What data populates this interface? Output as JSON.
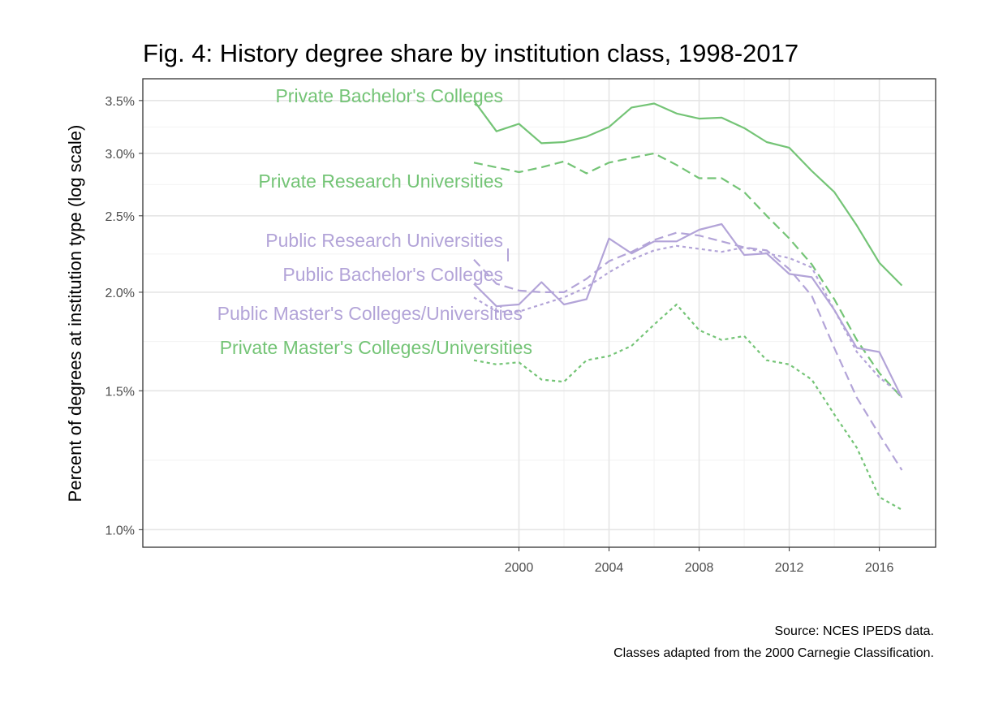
{
  "chart_data": {
    "type": "line",
    "title": "Fig. 4: History degree share by institution class, 1998-2017",
    "ylabel": "Percent of degrees at institution type (log scale)",
    "xlabel": "",
    "y_scale": "log",
    "x": [
      1998,
      1999,
      2000,
      2001,
      2002,
      2003,
      2004,
      2005,
      2006,
      2007,
      2008,
      2009,
      2010,
      2011,
      2012,
      2013,
      2014,
      2015,
      2016,
      2017
    ],
    "xlim": [
      1983.3,
      2018.5
    ],
    "ylim": [
      0.95,
      3.73
    ],
    "x_ticks": [
      2000,
      2004,
      2008,
      2012,
      2016
    ],
    "y_ticks": [
      1.0,
      1.5,
      2.0,
      2.5,
      3.0,
      3.5
    ],
    "y_tick_labels": [
      "1.0%",
      "1.5%",
      "2.0%",
      "2.5%",
      "3.0%",
      "3.5%"
    ],
    "grid": true,
    "legend": "direct labels at left end of each line",
    "colors": {
      "private": "#74c476",
      "public": "#b3a4d8"
    },
    "series": [
      {
        "name": "Private Bachelor's Colleges",
        "group": "private",
        "dash": "solid",
        "values": [
          3.5,
          3.2,
          3.27,
          3.09,
          3.1,
          3.15,
          3.24,
          3.43,
          3.47,
          3.37,
          3.32,
          3.33,
          3.23,
          3.1,
          3.05,
          2.85,
          2.68,
          2.43,
          2.18,
          2.04
        ]
      },
      {
        "name": "Private Research Universities",
        "group": "private",
        "dash": "dashed",
        "values": [
          2.92,
          2.88,
          2.84,
          2.88,
          2.93,
          2.83,
          2.92,
          2.96,
          3.0,
          2.9,
          2.79,
          2.79,
          2.68,
          2.5,
          2.34,
          2.17,
          1.96,
          1.74,
          1.58,
          1.47
        ]
      },
      {
        "name": "Public Research Universities",
        "group": "public",
        "dash": "solid",
        "values": [
          2.05,
          1.92,
          1.93,
          2.06,
          1.93,
          1.96,
          2.34,
          2.24,
          2.32,
          2.32,
          2.4,
          2.44,
          2.23,
          2.24,
          2.11,
          2.09,
          1.9,
          1.7,
          1.68,
          1.47
        ]
      },
      {
        "name": "Public Bachelor's Colleges",
        "group": "public",
        "dash": "dashed",
        "values": [
          2.2,
          2.05,
          2.01,
          2.0,
          2.0,
          2.08,
          2.19,
          2.25,
          2.33,
          2.38,
          2.36,
          2.32,
          2.28,
          2.26,
          2.14,
          1.98,
          1.7,
          1.47,
          1.32,
          1.19
        ]
      },
      {
        "name": "Public Master's Colleges/Universities",
        "group": "public",
        "dash": "dotted",
        "values": [
          1.97,
          1.89,
          1.89,
          1.93,
          1.97,
          2.03,
          2.12,
          2.2,
          2.26,
          2.29,
          2.27,
          2.25,
          2.28,
          2.24,
          2.21,
          2.15,
          1.9,
          1.68,
          1.56,
          1.48
        ]
      },
      {
        "name": "Private Master's Colleges/Universities",
        "group": "private",
        "dash": "dotted",
        "values": [
          1.64,
          1.62,
          1.63,
          1.55,
          1.54,
          1.64,
          1.66,
          1.71,
          1.82,
          1.93,
          1.79,
          1.74,
          1.76,
          1.64,
          1.62,
          1.55,
          1.4,
          1.27,
          1.1,
          1.06
        ]
      }
    ],
    "caption": [
      "Source: NCES IPEDS data.",
      "Classes adapted from the 2000 Carnegie Classification."
    ]
  }
}
